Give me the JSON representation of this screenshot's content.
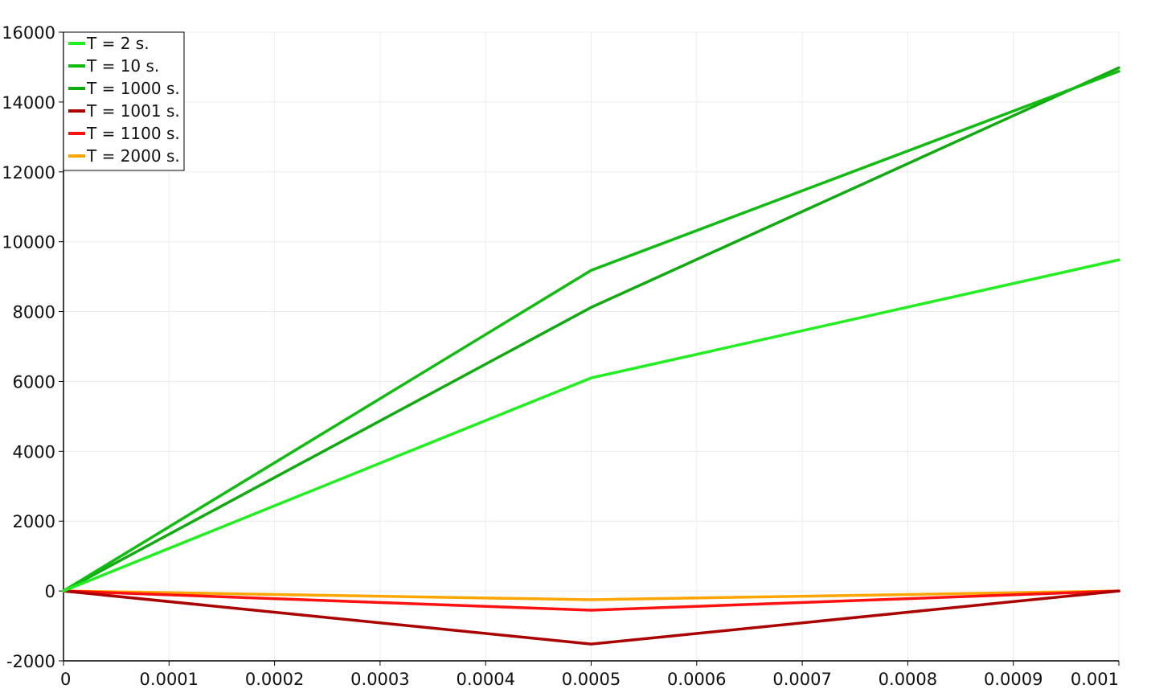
{
  "chart_data": {
    "type": "line",
    "title": "",
    "xlabel": "",
    "ylabel": "",
    "xlim": [
      0,
      0.001
    ],
    "ylim": [
      -2000,
      16000
    ],
    "grid": true,
    "legend_position": "top-left",
    "x_ticks": [
      0,
      0.0001,
      0.0002,
      0.0003,
      0.0004,
      0.0005,
      0.0006,
      0.0007,
      0.0008,
      0.0009,
      0.001
    ],
    "x_tick_labels": [
      "0",
      "0.0001",
      "0.0002",
      "0.0003",
      "0.0004",
      "0.0005",
      "0.0006",
      "0.0007",
      "0.0008",
      "0.0009",
      "0.001"
    ],
    "y_ticks": [
      -2000,
      0,
      2000,
      4000,
      6000,
      8000,
      10000,
      12000,
      14000,
      16000
    ],
    "y_tick_labels": [
      "-2000",
      "0",
      "2000",
      "4000",
      "6000",
      "8000",
      "10000",
      "12000",
      "14000",
      "16000"
    ],
    "x": [
      0,
      0.0005,
      0.001
    ],
    "series": [
      {
        "name": "T = 2 s.",
        "color": "#22ee22",
        "values": [
          0,
          6100,
          9480
        ]
      },
      {
        "name": "T = 10 s.",
        "color": "#11bb11",
        "values": [
          0,
          9180,
          14880
        ]
      },
      {
        "name": "T = 1000 s.",
        "color": "#11aa11",
        "values": [
          0,
          8120,
          14980
        ]
      },
      {
        "name": "T = 1001 s.",
        "color": "#aa0000",
        "values": [
          0,
          -1520,
          0
        ]
      },
      {
        "name": "T = 1100 s.",
        "color": "#ff1111",
        "values": [
          0,
          -550,
          0
        ]
      },
      {
        "name": "T = 2000 s.",
        "color": "#ffa500",
        "values": [
          0,
          -250,
          0
        ]
      }
    ]
  }
}
